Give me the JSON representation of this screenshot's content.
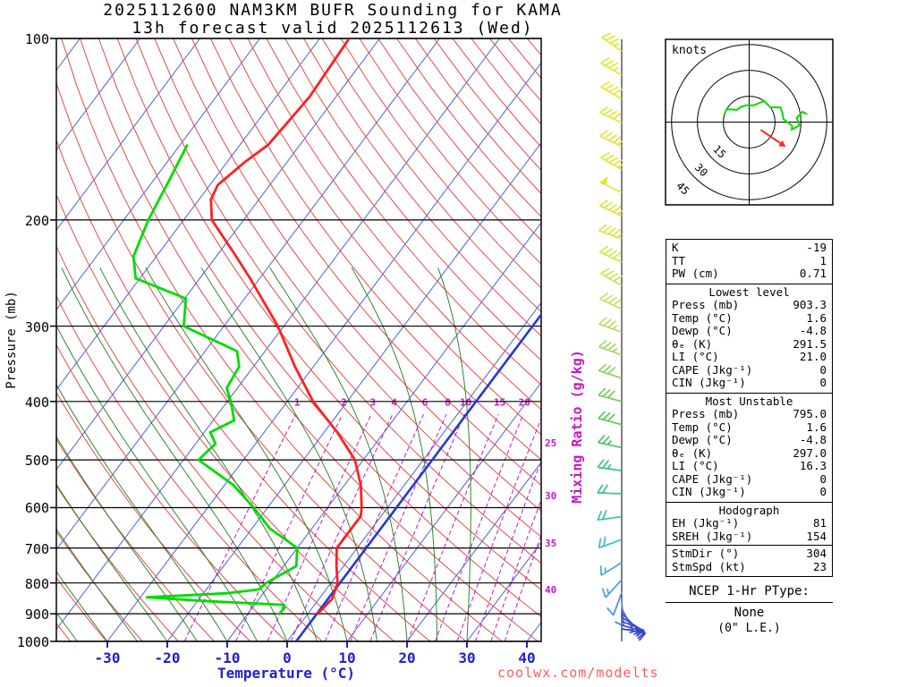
{
  "title": {
    "line1": "2025112600 NAM3KM BUFR Sounding for KAMA",
    "line2": "13h forecast valid 2025112613 (Wed)"
  },
  "watermark": "coolwx.com/modelts",
  "axes": {
    "pressure_label": "Pressure (mb)",
    "temperature_label": "Temperature (°C)",
    "mixing_ratio_label": "Mixing Ratio (g/kg)",
    "pressure_ticks": [
      100,
      200,
      300,
      400,
      500,
      600,
      700,
      800,
      900,
      1000
    ],
    "temperature_ticks": [
      -30,
      -20,
      -10,
      0,
      10,
      20,
      30,
      40
    ]
  },
  "hodograph": {
    "unit_label": "knots",
    "rings_kt": [
      15,
      30,
      45
    ],
    "storm_dir_deg": 304,
    "storm_speed_kt": 23,
    "trace_uv_kt": [
      [
        -14.5,
        3.9
      ],
      [
        -14.1,
        5.1
      ],
      [
        -13,
        7.5
      ],
      [
        -7.1,
        7.1
      ],
      [
        -5,
        8.7
      ],
      [
        -1.7,
        9.8
      ],
      [
        2.6,
        9.7
      ],
      [
        8.6,
        12.3
      ],
      [
        12.3,
        8.6
      ],
      [
        18.1,
        8.5
      ],
      [
        19.3,
        5.2
      ],
      [
        19.9,
        1.7
      ],
      [
        24.9,
        -2.2
      ],
      [
        24.6,
        -4.3
      ],
      [
        29,
        -2
      ],
      [
        27.5,
        2.5
      ],
      [
        31,
        6
      ],
      [
        33.5,
        4.5
      ]
    ]
  },
  "ptype": {
    "title": "NCEP 1-Hr PType:",
    "value": "None",
    "note": "(0\" L.E.)"
  },
  "stats": {
    "indices": [
      [
        "K",
        "-19"
      ],
      [
        "TT",
        "1"
      ],
      [
        "PW (cm)",
        "0.71"
      ]
    ],
    "lowest": {
      "header": "Lowest level",
      "rows": [
        [
          "Press (mb)",
          "903.3"
        ],
        [
          "Temp (°C)",
          "1.6"
        ],
        [
          "Dewp (°C)",
          "-4.8"
        ],
        [
          "θₑ (K)",
          "291.5"
        ],
        [
          "LI (°C)",
          "21.0"
        ],
        [
          "CAPE (Jkg⁻¹)",
          "0"
        ],
        [
          "CIN (Jkg⁻¹)",
          "0"
        ]
      ]
    },
    "most_unstable": {
      "header": "Most Unstable",
      "rows": [
        [
          "Press (mb)",
          "795.0"
        ],
        [
          "Temp (°C)",
          "1.6"
        ],
        [
          "Dewp (°C)",
          "-4.8"
        ],
        [
          "θₑ (K)",
          "297.0"
        ],
        [
          "LI (°C)",
          "16.3"
        ],
        [
          "CAPE (Jkg⁻¹)",
          "0"
        ],
        [
          "CIN (Jkg⁻¹)",
          "0"
        ]
      ]
    },
    "hodograph": {
      "header": "Hodograph",
      "rows": [
        [
          "EH (Jkg⁻¹)",
          "81"
        ],
        [
          "SREH (Jkg⁻¹)",
          "154"
        ]
      ],
      "rows2": [
        [
          "StmDir (°)",
          "304"
        ],
        [
          "StmSpd (kt)",
          "23"
        ]
      ]
    }
  },
  "colors": {
    "isotherm": "#4a5fe0",
    "dry_adiabat": "#e14b4b",
    "moist_adiabat": "#1e7a1e",
    "mixing_ratio": "#c417c4",
    "temperature_curve": "#ff2020",
    "dewpoint_curve": "#00dd00",
    "highlight_line": "#2238dd",
    "axis_temp": "#2020d0",
    "storm_marker": "#ff2222"
  },
  "chart_data": {
    "type": "skewt_log_p_sounding",
    "station": "KAMA",
    "model": "NAM3KM",
    "run": "2025112600",
    "forecast_hour": "13h",
    "valid": "2025112613 (Wed)",
    "pressure_axis_mb": {
      "min": 100,
      "max": 1000,
      "scale": "log"
    },
    "temperature_axis_c": {
      "min": -30,
      "max": 40
    },
    "isotherms_c": {
      "min": -110,
      "max": 40,
      "step": 10
    },
    "dry_adiabat_theta_k": {
      "min": 237,
      "max": 459,
      "step": 6
    },
    "moist_adiabat_surface_temps_c": [
      -35,
      -30,
      -25,
      -20,
      -15,
      -10,
      -5,
      0,
      5,
      10,
      15,
      20,
      25,
      30
    ],
    "mixing_ratio_lines_gkg": [
      1,
      2,
      3,
      4,
      6,
      8,
      10,
      15,
      20,
      25,
      30,
      35,
      40
    ],
    "highlight_isotherm_c": 1.5,
    "temperature_profile_p_t": [
      [
        903,
        1.6
      ],
      [
        850,
        2.2
      ],
      [
        800,
        1.1
      ],
      [
        750,
        -1.2
      ],
      [
        700,
        -3.4
      ],
      [
        650,
        -3.4
      ],
      [
        620,
        -3.4
      ],
      [
        600,
        -4.3
      ],
      [
        550,
        -7.3
      ],
      [
        500,
        -11.4
      ],
      [
        450,
        -17.8
      ],
      [
        400,
        -25.7
      ],
      [
        350,
        -33.1
      ],
      [
        300,
        -41.0
      ],
      [
        250,
        -51.6
      ],
      [
        225,
        -58.0
      ],
      [
        200,
        -65.3
      ],
      [
        185,
        -68.0
      ],
      [
        175,
        -68.7
      ],
      [
        160,
        -67.0
      ],
      [
        150,
        -65.3
      ],
      [
        125,
        -64.4
      ],
      [
        100,
        -65.1
      ]
    ],
    "dewpoint_profile_p_t": [
      [
        903,
        -4.8
      ],
      [
        880,
        -4.6
      ],
      [
        870,
        -5.1
      ],
      [
        858,
        -18.0
      ],
      [
        845,
        -28.9
      ],
      [
        832,
        -16.0
      ],
      [
        820,
        -11.2
      ],
      [
        800,
        -10.8
      ],
      [
        750,
        -7.9
      ],
      [
        700,
        -10.0
      ],
      [
        650,
        -17.0
      ],
      [
        600,
        -22.3
      ],
      [
        550,
        -28.6
      ],
      [
        500,
        -37.5
      ],
      [
        470,
        -36.7
      ],
      [
        450,
        -39.0
      ],
      [
        430,
        -36.5
      ],
      [
        400,
        -39.4
      ],
      [
        380,
        -41.8
      ],
      [
        350,
        -42.4
      ],
      [
        330,
        -44.7
      ],
      [
        300,
        -56.7
      ],
      [
        270,
        -59.8
      ],
      [
        250,
        -70.7
      ],
      [
        230,
        -73.8
      ],
      [
        200,
        -75.9
      ],
      [
        175,
        -77.2
      ],
      [
        150,
        -78.8
      ]
    ],
    "wind_barbs": [
      {
        "p": 105,
        "dir": 305,
        "spd": 35,
        "color": "#e6e637"
      },
      {
        "p": 115,
        "dir": 300,
        "spd": 35,
        "color": "#e6e637"
      },
      {
        "p": 126,
        "dir": 300,
        "spd": 40,
        "color": "#e6e637"
      },
      {
        "p": 138,
        "dir": 295,
        "spd": 40,
        "color": "#e6e637"
      },
      {
        "p": 151,
        "dir": 295,
        "spd": 45,
        "color": "#e4e43b"
      },
      {
        "p": 165,
        "dir": 300,
        "spd": 45,
        "color": "#e4e43b"
      },
      {
        "p": 180,
        "dir": 295,
        "spd": 50,
        "color": "#e2e43e"
      },
      {
        "p": 197,
        "dir": 295,
        "spd": 45,
        "color": "#e0e342"
      },
      {
        "p": 215,
        "dir": 290,
        "spd": 45,
        "color": "#dde24a"
      },
      {
        "p": 235,
        "dir": 295,
        "spd": 40,
        "color": "#d9e150"
      },
      {
        "p": 257,
        "dir": 300,
        "spd": 40,
        "color": "#d3df58"
      },
      {
        "p": 281,
        "dir": 295,
        "spd": 40,
        "color": "#cadd62"
      },
      {
        "p": 307,
        "dir": 290,
        "spd": 35,
        "color": "#bcd969"
      },
      {
        "p": 335,
        "dir": 290,
        "spd": 35,
        "color": "#a8d46a"
      },
      {
        "p": 366,
        "dir": 288,
        "spd": 30,
        "color": "#8fd066"
      },
      {
        "p": 400,
        "dir": 285,
        "spd": 30,
        "color": "#74cc5e"
      },
      {
        "p": 437,
        "dir": 285,
        "spd": 30,
        "color": "#5ac959"
      },
      {
        "p": 477,
        "dir": 282,
        "spd": 25,
        "color": "#47c75e"
      },
      {
        "p": 521,
        "dir": 278,
        "spd": 25,
        "color": "#3cc573"
      },
      {
        "p": 569,
        "dir": 272,
        "spd": 22,
        "color": "#37c48f"
      },
      {
        "p": 621,
        "dir": 262,
        "spd": 20,
        "color": "#35c3ab"
      },
      {
        "p": 678,
        "dir": 250,
        "spd": 20,
        "color": "#37bfc4"
      },
      {
        "p": 740,
        "dir": 238,
        "spd": 15,
        "color": "#3fb0d6"
      },
      {
        "p": 790,
        "dir": 222,
        "spd": 15,
        "color": "#47a0e0"
      },
      {
        "p": 830,
        "dir": 200,
        "spd": 12,
        "color": "#4b8fe5"
      },
      {
        "p": 860,
        "dir": 175,
        "spd": 10,
        "color": "#4a7de4"
      },
      {
        "p": 882,
        "dir": 152,
        "spd": 10,
        "color": "#4569de"
      },
      {
        "p": 898,
        "dir": 135,
        "spd": 10,
        "color": "#3f58d6"
      },
      {
        "p": 912,
        "dir": 122,
        "spd": 12,
        "color": "#3a4ecf"
      },
      {
        "p": 926,
        "dir": 112,
        "spd": 15,
        "color": "#374ac9"
      },
      {
        "p": 940,
        "dir": 106,
        "spd": 15,
        "color": "#3446c4"
      },
      {
        "p": 953,
        "dir": 100,
        "spd": 15,
        "color": "#3243c0"
      }
    ]
  }
}
